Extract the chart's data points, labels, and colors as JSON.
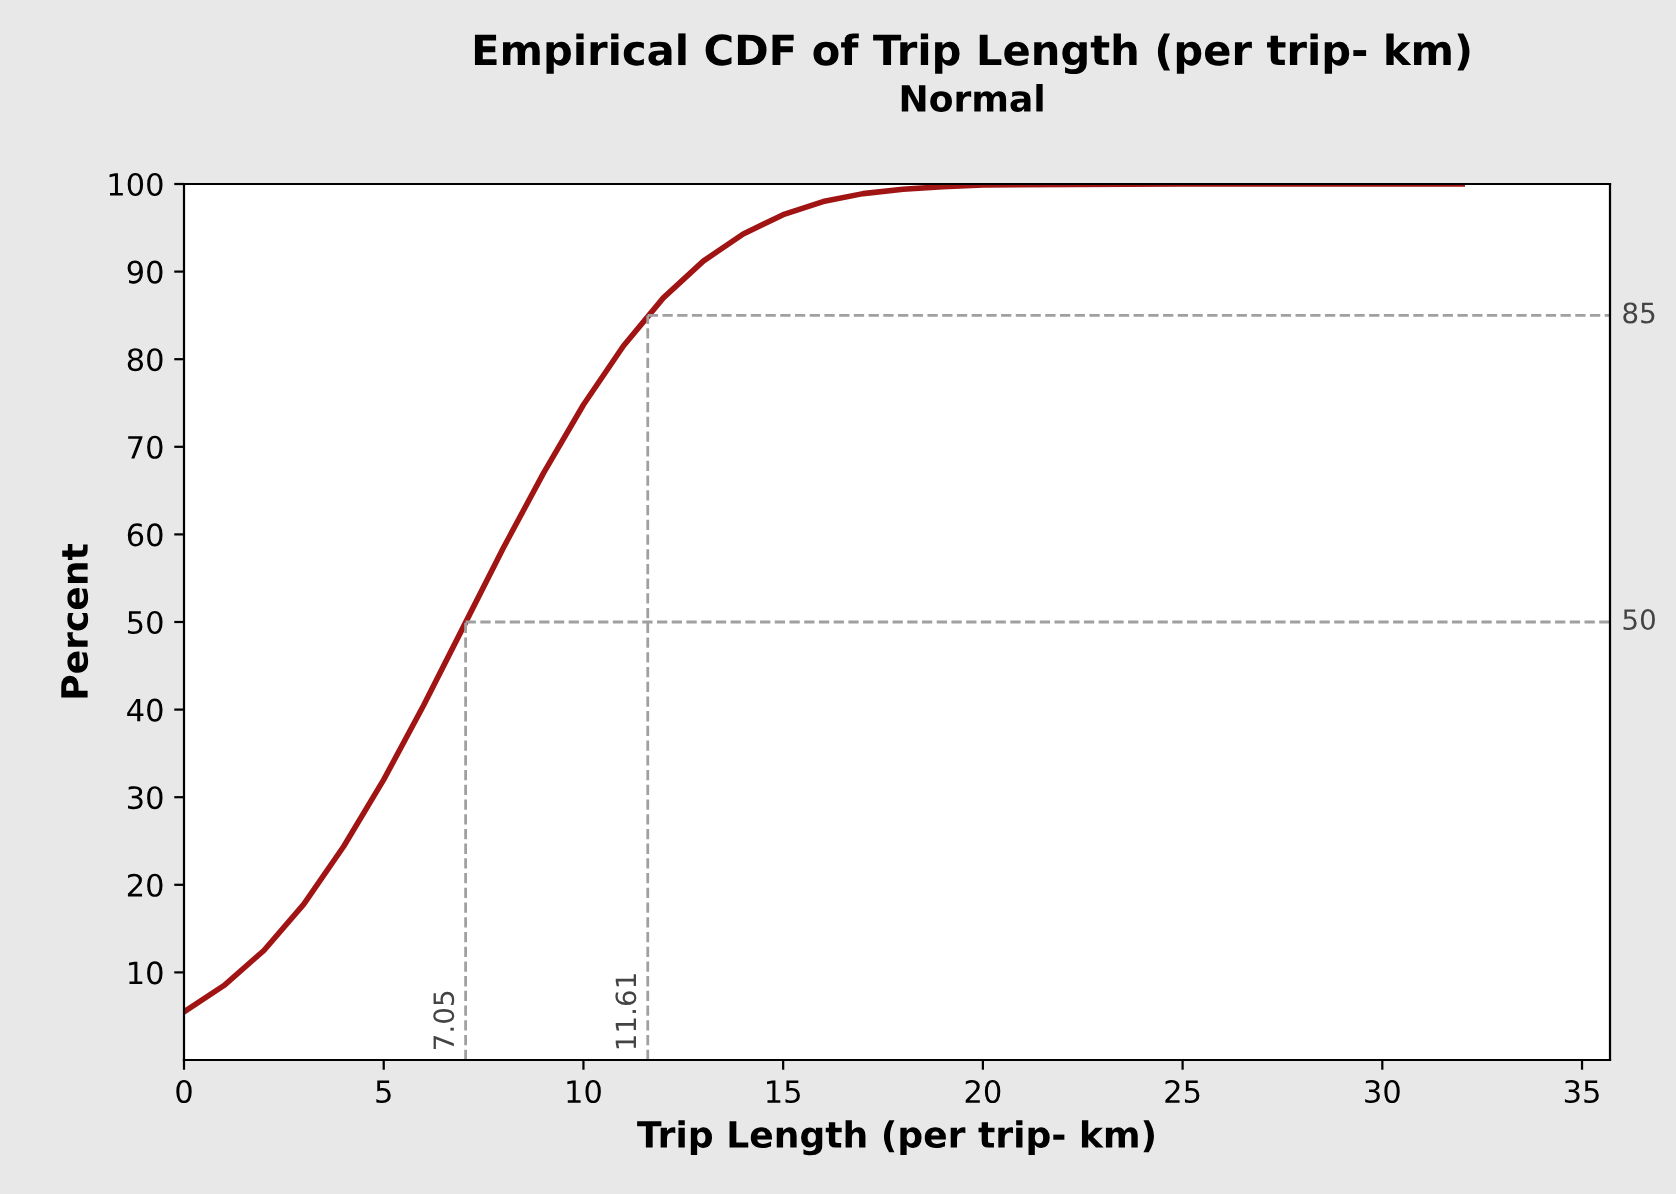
{
  "chart_data": {
    "type": "line",
    "title": "Empirical CDF of Trip Length (per trip- km)",
    "subtitle": "Normal",
    "xlabel": "Trip Length (per trip- km)",
    "ylabel": "Percent",
    "x": [
      0,
      1,
      2,
      3,
      4,
      5,
      6,
      7,
      8,
      9,
      10,
      11,
      12,
      13,
      14,
      15,
      16,
      17,
      18,
      19,
      20,
      25,
      32
    ],
    "series": [
      {
        "color": "#a01414",
        "values": [
          5.5,
          8.5,
          12.5,
          17.8,
          24.4,
          32,
          40.5,
          49.5,
          58.5,
          67,
          74.8,
          81.5,
          87,
          91.2,
          94.3,
          96.5,
          98,
          98.9,
          99.4,
          99.7,
          99.9,
          100,
          100
        ]
      }
    ],
    "xlim": [
      0,
      35.7
    ],
    "ylim": [
      0,
      100
    ],
    "xticks": [
      0,
      5,
      10,
      15,
      20,
      25,
      30,
      35
    ],
    "yticks": [
      10,
      20,
      30,
      40,
      50,
      60,
      70,
      80,
      90,
      100
    ],
    "grid": false,
    "line_style": "solid",
    "marker": "none",
    "ref_lines": [
      {
        "axis": "x",
        "value": 7.05,
        "label": "7.05",
        "color": "#a0a0a0",
        "line_style": "dashed"
      },
      {
        "axis": "x",
        "value": 11.61,
        "label": "11.61",
        "color": "#a0a0a0",
        "line_style": "dashed"
      },
      {
        "axis": "y",
        "value": 50,
        "label": "50",
        "color": "#a0a0a0",
        "line_style": "dashed"
      },
      {
        "axis": "y",
        "value": 85,
        "label": "85",
        "color": "#a0a0a0",
        "line_style": "dashed"
      }
    ]
  }
}
